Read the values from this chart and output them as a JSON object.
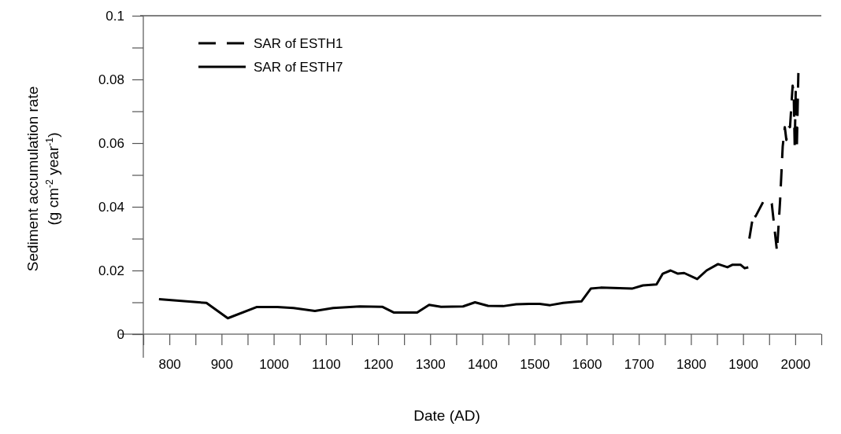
{
  "chart_data": {
    "type": "line",
    "xlabel": "Date (AD)",
    "ylabel": "Sediment accumulation rate\n(g cm$^{-2}$ year$^{-1}$)",
    "xlim": [
      750,
      2050
    ],
    "ylim": [
      0,
      0.1
    ],
    "xticks": [
      {
        "value": 750,
        "label": null
      },
      800,
      {
        "value": 850,
        "label": null
      },
      900,
      {
        "value": 950,
        "label": null
      },
      1000,
      {
        "value": 1050,
        "label": null
      },
      1100,
      {
        "value": 1150,
        "label": null
      },
      1200,
      {
        "value": 1250,
        "label": null
      },
      1300,
      {
        "value": 1350,
        "label": null
      },
      1400,
      {
        "value": 1450,
        "label": null
      },
      1500,
      {
        "value": 1550,
        "label": null
      },
      1600,
      {
        "value": 1650,
        "label": null
      },
      1700,
      {
        "value": 1750,
        "label": null
      },
      1800,
      {
        "value": 1850,
        "label": null
      },
      1900,
      {
        "value": 1950,
        "label": null
      },
      2000,
      {
        "value": 2050,
        "label": null
      }
    ],
    "yticks": [
      0,
      {
        "value": 0.01,
        "label": null
      },
      0.02,
      {
        "value": 0.03,
        "label": null
      },
      0.04,
      {
        "value": 0.05,
        "label": null
      },
      0.06,
      {
        "value": 0.07,
        "label": null
      },
      0.08,
      {
        "value": 0.09,
        "label": null
      },
      0.1
    ],
    "grid": false,
    "legend": "top left",
    "marker": "none",
    "series": [
      {
        "name": "SAR of ESTH1",
        "color": "#000000",
        "line_style": "dashed",
        "x": [
          1912,
          1920,
          1924,
          1940,
          1949,
          1955,
          1957,
          1965,
          1971,
          1976,
          1980,
          1983,
          1988,
          1990,
          1995,
          1997,
          1999,
          2001,
          2003,
          2006
        ],
        "values": [
          0.03,
          0.038,
          0.037,
          0.042,
          0.042,
          0.041,
          0.038,
          0.026,
          0.042,
          0.059,
          0.065,
          0.061,
          0.065,
          0.065,
          0.078,
          0.076,
          0.059,
          0.077,
          0.058,
          0.082
        ]
      },
      {
        "name": "SAR of ESTH7",
        "color": "#000000",
        "line_style": "solid",
        "x": [
          780,
          871,
          912,
          967,
          1007,
          1038,
          1079,
          1114,
          1165,
          1208,
          1230,
          1275,
          1298,
          1321,
          1363,
          1386,
          1411,
          1440,
          1465,
          1490,
          1510,
          1530,
          1555,
          1575,
          1590,
          1608,
          1627,
          1687,
          1708,
          1734,
          1746,
          1761,
          1775,
          1787,
          1812,
          1830,
          1852,
          1870,
          1880,
          1895,
          1903,
          1910
        ],
        "values": [
          0.011,
          0.0098,
          0.005,
          0.0085,
          0.0085,
          0.0082,
          0.0073,
          0.0082,
          0.0087,
          0.0086,
          0.0068,
          0.0068,
          0.0092,
          0.0086,
          0.0087,
          0.01,
          0.0089,
          0.0088,
          0.0094,
          0.0095,
          0.0095,
          0.0091,
          0.0098,
          0.0101,
          0.0103,
          0.0143,
          0.0146,
          0.0143,
          0.0153,
          0.0156,
          0.019,
          0.02,
          0.019,
          0.0192,
          0.0173,
          0.02,
          0.022,
          0.021,
          0.0218,
          0.0218,
          0.0207,
          0.021
        ]
      }
    ]
  }
}
